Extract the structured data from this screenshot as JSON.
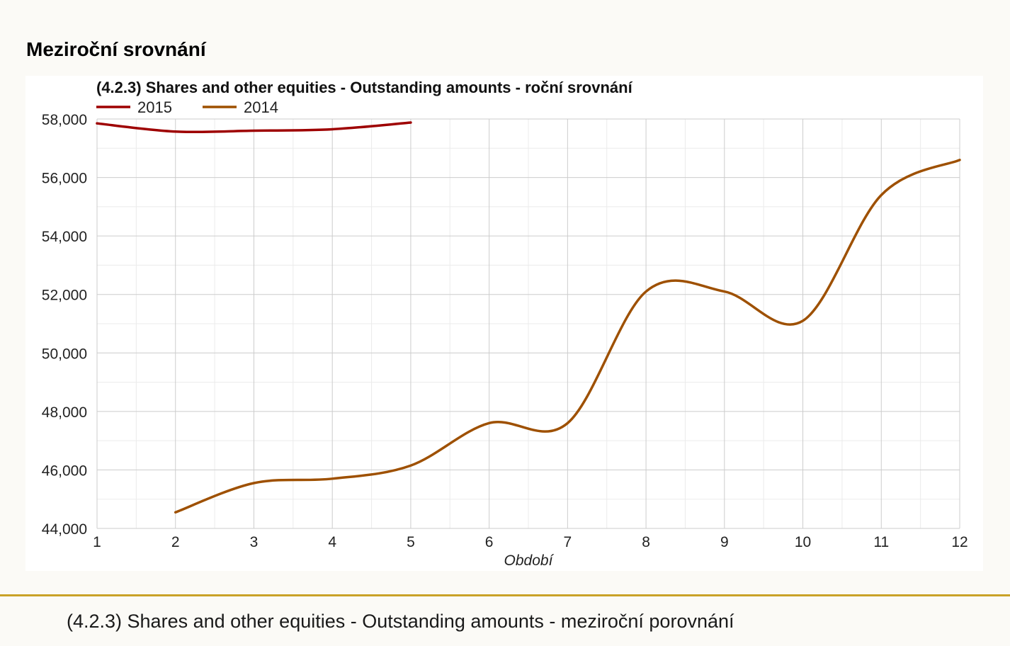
{
  "page": {
    "heading": "Meziroční srovnání",
    "caption": "(4.2.3) Shares and other equities - Outstanding amounts - meziroční porovnání"
  },
  "colors": {
    "series_2015": "#9e0000",
    "series_2014": "#9e5000",
    "grid_major": "#cccccc",
    "grid_minor": "#ebebeb",
    "divider": "#c9a227"
  },
  "chart_data": {
    "type": "line",
    "title": "(4.2.3) Shares and other equities - Outstanding amounts - roční srovnání",
    "xlabel": "Období",
    "ylabel": "",
    "xlim": [
      1,
      12
    ],
    "ylim": [
      44000,
      58000
    ],
    "x_ticks": [
      1,
      2,
      3,
      4,
      5,
      6,
      7,
      8,
      9,
      10,
      11,
      12
    ],
    "y_ticks": [
      44000,
      46000,
      48000,
      50000,
      52000,
      54000,
      56000,
      58000
    ],
    "y_tick_labels": [
      "44,000",
      "46,000",
      "48,000",
      "50,000",
      "52,000",
      "54,000",
      "56,000",
      "58,000"
    ],
    "grid": true,
    "legend_position": "top-left",
    "series": [
      {
        "name": "2015",
        "color": "#9e0000",
        "x": [
          1,
          2,
          3,
          4,
          5
        ],
        "values": [
          57850,
          57570,
          57600,
          57650,
          57880
        ]
      },
      {
        "name": "2014",
        "color": "#9e5000",
        "x": [
          2,
          3,
          4,
          5,
          6,
          7,
          8,
          9,
          10,
          11,
          12
        ],
        "values": [
          44550,
          45550,
          45700,
          46150,
          47600,
          47600,
          52100,
          52100,
          51100,
          55400,
          56600
        ]
      }
    ]
  }
}
